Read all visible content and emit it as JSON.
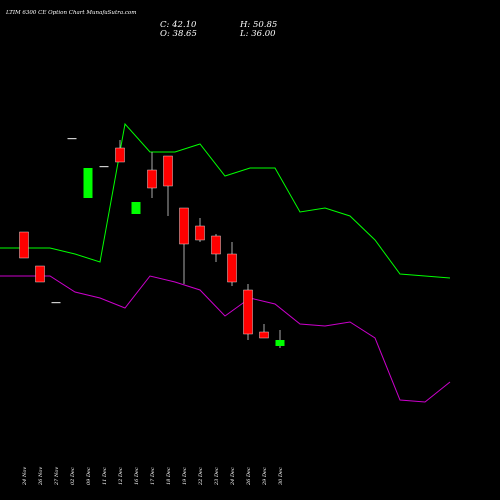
{
  "title": "LTIM 6300  CE Option  Chart MunafaSutra.com",
  "ohlc": {
    "close": "C: 42.10",
    "open": "O: 38.65",
    "high": "H: 50.85",
    "low": "L: 36.00"
  },
  "colors": {
    "background": "#000000",
    "green_line": "#00ff00",
    "magenta_line": "#cc00cc",
    "up_candle": "#00ff00",
    "down_candle": "#ff0000",
    "text": "#ffffff"
  },
  "chart_data": {
    "type": "candlestick",
    "title": "LTIM 6300  CE Option  Chart MunafaSutra.com",
    "x_tick_labels": [
      "24 Nov",
      "26 Nov",
      "27 Nov",
      "02 Dec",
      "09 Dec",
      "11 Dec",
      "12 Dec",
      "16 Dec",
      "17 Dec",
      "18 Dec",
      "19 Dec",
      "22 Dec",
      "23 Dec",
      "24 Dec",
      "26 Dec",
      "29 Dec",
      "30 Dec"
    ],
    "candles": [
      {
        "date": "24 Nov",
        "open": 139,
        "high": 139,
        "low": 126,
        "close": 126,
        "dir": "down"
      },
      {
        "date": "26 Nov",
        "open": 122,
        "high": 122,
        "low": 114,
        "close": 114,
        "dir": "down"
      },
      {
        "date": "27 Nov",
        "open": 104,
        "high": 104,
        "low": 104,
        "close": 104,
        "dir": "flat"
      },
      {
        "date": "02 Dec",
        "open": 186,
        "high": 186,
        "low": 186,
        "close": 186,
        "dir": "flat"
      },
      {
        "date": "09 Dec",
        "open": 156,
        "high": 171,
        "low": 156,
        "close": 171,
        "dir": "up"
      },
      {
        "date": "11 Dec",
        "open": 172,
        "high": 172,
        "low": 172,
        "close": 172,
        "dir": "flat"
      },
      {
        "date": "12 Dec",
        "open": 181,
        "high": 185,
        "low": 174,
        "close": 174,
        "dir": "down"
      },
      {
        "date": "16 Dec",
        "open": 148,
        "high": 154,
        "low": 148,
        "close": 154,
        "dir": "up"
      },
      {
        "date": "17 Dec",
        "open": 170,
        "high": 179,
        "low": 156,
        "close": 161,
        "dir": "down"
      },
      {
        "date": "18 Dec",
        "open": 177,
        "high": 177,
        "low": 147,
        "close": 162,
        "dir": "down"
      },
      {
        "date": "19 Dec",
        "open": 151,
        "high": 151,
        "low": 113,
        "close": 133,
        "dir": "down"
      },
      {
        "date": "22 Dec",
        "open": 142,
        "high": 146,
        "low": 134,
        "close": 135,
        "dir": "down"
      },
      {
        "date": "23 Dec",
        "open": 137,
        "high": 138,
        "low": 124,
        "close": 128,
        "dir": "down"
      },
      {
        "date": "24 Dec",
        "open": 128,
        "high": 134,
        "low": 112,
        "close": 114,
        "dir": "down"
      },
      {
        "date": "26 Dec",
        "open": 110,
        "high": 113,
        "low": 85,
        "close": 88,
        "dir": "down"
      },
      {
        "date": "29 Dec",
        "open": 89,
        "high": 93,
        "low": 86,
        "close": 86,
        "dir": "down"
      },
      {
        "date": "30 Dec",
        "open": 82,
        "high": 90,
        "low": 81,
        "close": 85,
        "dir": "up"
      }
    ],
    "green_line": [
      131,
      131,
      131,
      128,
      124,
      193,
      179,
      179,
      183,
      167,
      171,
      171,
      149,
      151,
      147,
      135,
      118,
      117,
      116
    ],
    "magenta_line": [
      117,
      117,
      117,
      109,
      106,
      101,
      117,
      114,
      110,
      97,
      106,
      103,
      93,
      92,
      94,
      86,
      55,
      54,
      64
    ],
    "ylim": [
      0,
      250
    ],
    "grid": false
  }
}
